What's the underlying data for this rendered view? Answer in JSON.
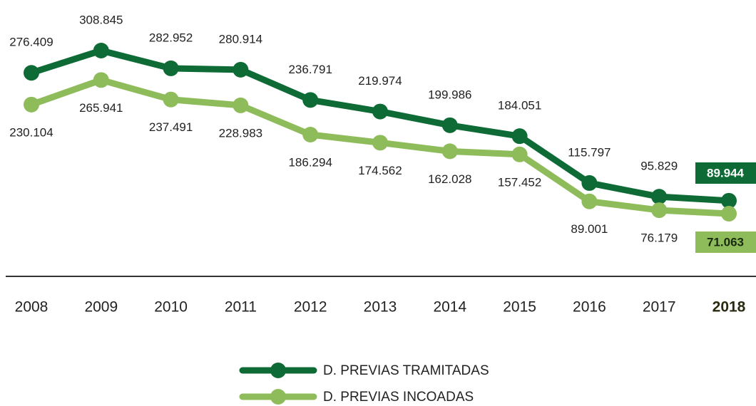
{
  "chart_data": {
    "type": "line",
    "categories": [
      "2008",
      "2009",
      "2010",
      "2011",
      "2012",
      "2013",
      "2014",
      "2015",
      "2016",
      "2017",
      "2018"
    ],
    "series": [
      {
        "name": "D. PREVIAS TRAMITADAS",
        "color": "#0e6b35",
        "values": [
          276409,
          308845,
          282952,
          280914,
          236791,
          219974,
          199986,
          184051,
          115797,
          95829,
          89944
        ],
        "value_labels": [
          "276.409",
          "308.845",
          "282.952",
          "280.914",
          "236.791",
          "219.974",
          "199.986",
          "184.051",
          "115.797",
          "95.829",
          "89.944"
        ]
      },
      {
        "name": "D. PREVIAS INCOADAS",
        "color": "#8fbc5a",
        "values": [
          230104,
          265941,
          237491,
          228983,
          186294,
          174562,
          162028,
          157452,
          89001,
          76179,
          71063
        ],
        "value_labels": [
          "230.104",
          "265.941",
          "237.491",
          "228.983",
          "186.294",
          "174.562",
          "162.028",
          "157.452",
          "89.001",
          "76.179",
          "71.063"
        ]
      }
    ]
  }
}
